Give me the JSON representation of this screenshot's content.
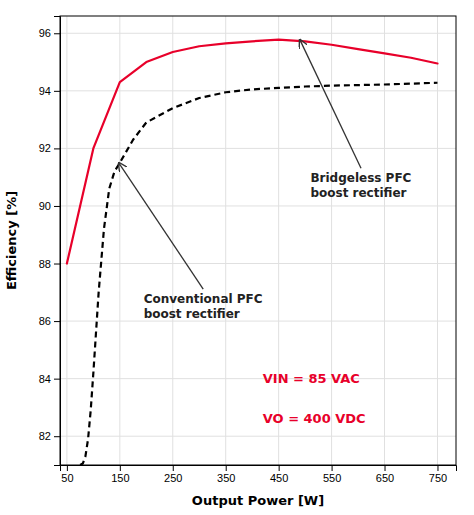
{
  "chart_data": {
    "type": "line",
    "xlabel": "Output Power [W]",
    "ylabel": "Efficiency [%]",
    "series": [
      {
        "x": [
          50,
          100,
          150,
          200,
          250,
          300,
          350,
          400,
          450,
          500,
          550,
          600,
          650,
          700,
          750
        ],
        "values": [
          88.0,
          92.0,
          94.3,
          95.0,
          95.35,
          95.55,
          95.65,
          95.72,
          95.78,
          95.72,
          95.6,
          95.45,
          95.3,
          95.15,
          94.95
        ],
        "color": "#e8002a",
        "line_style": "solid"
      },
      {
        "x": [
          75,
          80,
          85,
          90,
          95,
          100,
          110,
          120,
          130,
          140,
          150,
          175,
          200,
          250,
          300,
          350,
          400,
          450,
          500,
          550,
          600,
          650,
          700,
          750
        ],
        "values": [
          81.0,
          81.05,
          81.3,
          81.9,
          82.9,
          84.2,
          87.0,
          89.2,
          90.6,
          91.2,
          91.5,
          92.3,
          92.9,
          93.4,
          93.75,
          93.95,
          94.05,
          94.1,
          94.15,
          94.18,
          94.2,
          94.22,
          94.25,
          94.28
        ],
        "color": "#000000",
        "line_style": "dashed"
      }
    ],
    "xlim": [
      37,
      785
    ],
    "ylim": [
      81.0,
      96.6
    ],
    "xticks": [
      50,
      150,
      250,
      350,
      450,
      550,
      650,
      750
    ],
    "yticks": [
      82,
      84,
      86,
      88,
      90,
      92,
      94,
      96
    ],
    "grid": true,
    "annotations": [
      {
        "text": "Bridgeless PFC\nboost rectifier",
        "x": 490,
        "y": 95.78,
        "text_x": 510,
        "text_y": 91.2
      },
      {
        "text": "Conventional PFC\nboost rectifier",
        "x": 148,
        "y": 91.5,
        "text_x": 195,
        "text_y": 87.0
      },
      {
        "text": "VIN = 85 VAC",
        "x": 420,
        "y": 84.0,
        "color": "#e8002a"
      },
      {
        "text": "VO = 400 VDC",
        "x": 420,
        "y": 82.6,
        "color": "#e8002a"
      }
    ]
  }
}
